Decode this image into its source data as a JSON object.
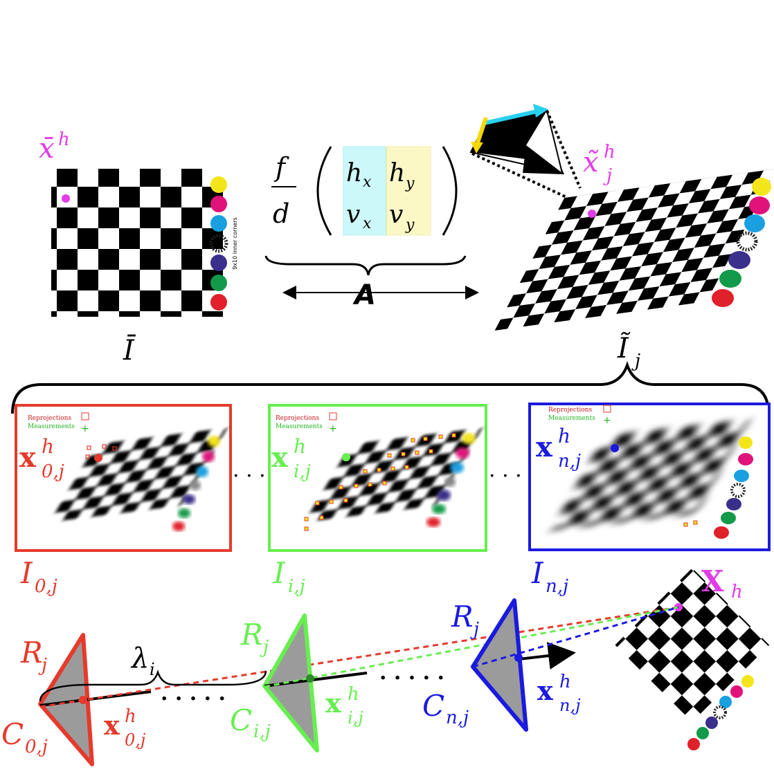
{
  "colors": {
    "red": "#e53a2c",
    "green": "#66ef4f",
    "blue": "#1a1ae0",
    "magenta": "#e23be8",
    "black": "#000000",
    "gray": "#9b9b9b",
    "cyan_box": "#8ff0f5",
    "yellow_box": "#f8f080",
    "marker_colors": [
      "#f4e51a",
      "#e0137a",
      "#1aa0e0",
      "#3a2f8a",
      "#129a4a",
      "#e0202a"
    ]
  },
  "top": {
    "ref_point_label": "x̄",
    "ref_point_sup": "h",
    "ref_image_label": "Ī",
    "warp_point_label": "x̃",
    "warp_point_sup": "h",
    "warp_point_sub": "j",
    "warp_image_label": "Ĩ",
    "warp_image_sub": "j",
    "matrix": {
      "frac_num": "f",
      "frac_den": "d",
      "hx": "h",
      "hx_sub": "x",
      "hy": "h",
      "hy_sub": "y",
      "vx": "v",
      "vx_sub": "x",
      "vy": "v",
      "vy_sub": "y",
      "brace_label": "A"
    },
    "marker_caption": "9x10 inner corners"
  },
  "panels": {
    "legend_reproj": "Reprojections",
    "legend_meas": "Measurements",
    "ellipsis": "· · ·",
    "p0": {
      "point": "x",
      "sup": "h",
      "sub": "0,j",
      "image": "I",
      "image_sub": "0,j"
    },
    "pi": {
      "point": "x",
      "sup": "h",
      "sub": "i,j",
      "image": "I",
      "image_sub": "i,j"
    },
    "pn": {
      "point": "x",
      "sup": "h",
      "sub": "n,j",
      "image": "I",
      "image_sub": "n,j"
    }
  },
  "bottom": {
    "world_point": "X",
    "world_point_sub": "h",
    "lambda": "λ",
    "lambda_sub": "i",
    "ellipsis": ". . . . .",
    "cam0": {
      "R": "R",
      "R_sub": "j",
      "C": "C",
      "C_sub": "0,j",
      "x": "x",
      "x_sup": "h",
      "x_sub": "0,j"
    },
    "cami": {
      "R": "R",
      "R_sub": "j",
      "C": "C",
      "C_sub": "i,j",
      "x": "x",
      "x_sup": "h",
      "x_sub": "i,j"
    },
    "camn": {
      "R": "R",
      "R_sub": "j",
      "C": "C",
      "C_sub": "n,j",
      "x": "x",
      "x_sup": "h",
      "x_sub": "n,j"
    }
  }
}
